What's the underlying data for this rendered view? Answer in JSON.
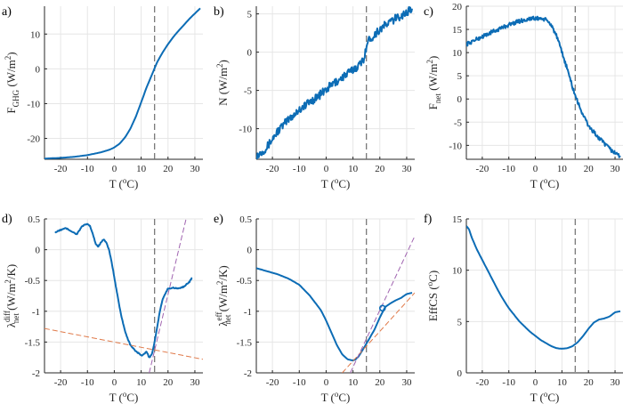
{
  "colors": {
    "line": "#0c6cb5",
    "grid": "#e6e6e6",
    "axis": "#262626",
    "vline": "#6e6e6e",
    "orange": "#e07a4a",
    "purple": "#a064b0"
  },
  "chart_data": [
    {
      "type": "line",
      "panel": "a)",
      "ylabel": {
        "main": "F",
        "sub": "GHG",
        "unit_pre": "(W/m",
        "unit_sup": "2",
        "unit_post": ")"
      },
      "xlabel": {
        "main": "T (",
        "sup": "o",
        "post": "C)"
      },
      "xlim": [
        -26,
        33
      ],
      "ylim": [
        -26,
        18
      ],
      "xticks": [
        -20,
        -10,
        0,
        10,
        20,
        30
      ],
      "yticks": [
        -20,
        -10,
        0,
        10
      ],
      "vline": 15,
      "series": [
        {
          "name": "F_GHG",
          "noise": 0,
          "x": [
            -26,
            -20,
            -15,
            -10,
            -5,
            -2,
            0,
            2,
            4,
            6,
            8,
            10,
            12,
            14,
            15,
            16,
            18,
            20,
            22,
            24,
            26,
            28,
            30,
            32
          ],
          "y": [
            -25.8,
            -25.6,
            -25.3,
            -24.8,
            -24.0,
            -23.3,
            -22.6,
            -21.5,
            -19.7,
            -17.2,
            -13.8,
            -9.6,
            -5.4,
            -1.7,
            0.2,
            2.0,
            4.7,
            7.1,
            9.2,
            11.0,
            12.7,
            14.4,
            15.9,
            17.4
          ]
        }
      ]
    },
    {
      "type": "line",
      "panel": "b)",
      "ylabel": {
        "main": "N",
        "sub": "",
        "unit_pre": "(W/m",
        "unit_sup": "2",
        "unit_post": ")"
      },
      "xlabel": {
        "main": "T (",
        "sup": "o",
        "post": "C)"
      },
      "xlim": [
        -26,
        33
      ],
      "ylim": [
        -14,
        6
      ],
      "xticks": [
        -20,
        -10,
        0,
        10,
        20,
        30
      ],
      "yticks": [
        -10,
        -5,
        0,
        5
      ],
      "vline": 15,
      "series": [
        {
          "name": "N",
          "noise": 0.55,
          "x": [
            -26,
            -22,
            -18,
            -14,
            -10,
            -6,
            -2,
            2,
            6,
            10,
            13,
            14,
            15,
            16,
            18,
            20,
            24,
            28,
            32
          ],
          "y": [
            -13.6,
            -12.4,
            -10.3,
            -8.8,
            -7.5,
            -6.5,
            -5.5,
            -4.3,
            -3.3,
            -2.3,
            -1.5,
            -0.8,
            0.8,
            1.6,
            2.3,
            3.0,
            4.0,
            4.8,
            5.6
          ]
        }
      ]
    },
    {
      "type": "line",
      "panel": "c)",
      "ylabel": {
        "main": "F",
        "sub": "net",
        "unit_pre": "(W/m",
        "unit_sup": "2",
        "unit_post": ")"
      },
      "xlabel": {
        "main": "T (",
        "sup": "o",
        "post": "C)"
      },
      "xlim": [
        -26,
        33
      ],
      "ylim": [
        -13,
        20
      ],
      "xticks": [
        -20,
        -10,
        0,
        10,
        20,
        30
      ],
      "yticks": [
        -10,
        -5,
        0,
        5,
        10,
        15,
        20
      ],
      "vline": 15,
      "series": [
        {
          "name": "F_net",
          "noise": 0.45,
          "x": [
            -26,
            -22,
            -18,
            -14,
            -10,
            -6,
            -2,
            2,
            4,
            6,
            8,
            10,
            12,
            14,
            16,
            18,
            20,
            24,
            28,
            32
          ],
          "y": [
            11.8,
            12.9,
            14.0,
            15.0,
            16.0,
            16.8,
            17.3,
            17.4,
            17.0,
            16.0,
            13.5,
            10.0,
            6.5,
            2.5,
            -0.8,
            -3.5,
            -5.8,
            -8.5,
            -10.8,
            -12.4
          ]
        }
      ]
    },
    {
      "type": "line",
      "panel": "d)",
      "ylabel": {
        "main": "λ",
        "sub": "net",
        "sup": "diff",
        "unit_pre": "(W/m",
        "unit_sup": "2",
        "unit_post": "/K)"
      },
      "xlabel": {
        "main": "T (",
        "sup": "o",
        "post": "C)"
      },
      "xlim": [
        -26,
        33
      ],
      "ylim": [
        -2,
        0.5
      ],
      "xticks": [
        -20,
        -10,
        0,
        10,
        20,
        30
      ],
      "yticks": [
        -2,
        -1.5,
        -1,
        -0.5,
        0,
        0.5
      ],
      "vline": 15,
      "series": [
        {
          "name": "lambda_diff",
          "noise": 0.008,
          "x": [
            -22,
            -20,
            -18,
            -16,
            -14,
            -12,
            -10,
            -9,
            -8,
            -7,
            -6,
            -5,
            -4,
            -3,
            -2,
            -1,
            0,
            1,
            2,
            3,
            4,
            5,
            6,
            7,
            8,
            9,
            10,
            11,
            12,
            13,
            14,
            15,
            16,
            17,
            18,
            20,
            22,
            24,
            26,
            28,
            29
          ],
          "y": [
            0.28,
            0.32,
            0.35,
            0.3,
            0.25,
            0.38,
            0.42,
            0.38,
            0.25,
            0.1,
            0.05,
            0.12,
            0.17,
            0.12,
            0.0,
            -0.2,
            -0.45,
            -0.7,
            -0.95,
            -1.15,
            -1.32,
            -1.45,
            -1.55,
            -1.6,
            -1.65,
            -1.68,
            -1.72,
            -1.7,
            -1.65,
            -1.75,
            -1.7,
            -1.5,
            -1.25,
            -1.0,
            -0.8,
            -0.63,
            -0.62,
            -0.63,
            -0.6,
            -0.52,
            -0.45
          ]
        },
        {
          "name": "fit_low",
          "style": "dashed",
          "color": "orange",
          "x": [
            -26,
            33
          ],
          "y": [
            -1.28,
            -1.78
          ]
        },
        {
          "name": "fit_high",
          "style": "dashed",
          "color": "purple",
          "x": [
            13,
            27
          ],
          "y": [
            -2.0,
            0.55
          ]
        }
      ]
    },
    {
      "type": "line",
      "panel": "e)",
      "ylabel": {
        "main": "λ",
        "sub": "net",
        "sup": "eff",
        "unit_pre": "(W/m",
        "unit_sup": "2",
        "unit_post": "/K)"
      },
      "xlabel": {
        "main": "T (",
        "sup": "o",
        "post": "C)"
      },
      "xlim": [
        -26,
        33
      ],
      "ylim": [
        -2,
        0.5
      ],
      "xticks": [
        -20,
        -10,
        0,
        10,
        20,
        30
      ],
      "yticks": [
        -2,
        -1.5,
        -1,
        -0.5,
        0,
        0.5
      ],
      "vline": 15,
      "marker": {
        "x": 21,
        "y": -0.95
      },
      "series": [
        {
          "name": "lambda_eff",
          "noise": 0,
          "x": [
            -26,
            -22,
            -18,
            -14,
            -10,
            -6,
            -2,
            0,
            2,
            4,
            6,
            8,
            10,
            11,
            12,
            14,
            16,
            18,
            20,
            22,
            24,
            26,
            28,
            30,
            32
          ],
          "y": [
            -0.3,
            -0.35,
            -0.4,
            -0.47,
            -0.57,
            -0.75,
            -0.98,
            -1.15,
            -1.35,
            -1.55,
            -1.7,
            -1.78,
            -1.8,
            -1.78,
            -1.74,
            -1.6,
            -1.45,
            -1.3,
            -1.1,
            -0.93,
            -0.87,
            -0.82,
            -0.78,
            -0.72,
            -0.7
          ]
        },
        {
          "name": "fit_low",
          "style": "dashed",
          "color": "orange",
          "x": [
            6,
            33
          ],
          "y": [
            -2.0,
            -0.7
          ]
        },
        {
          "name": "fit_high",
          "style": "dashed",
          "color": "purple",
          "x": [
            9,
            33
          ],
          "y": [
            -2.0,
            0.22
          ]
        }
      ]
    },
    {
      "type": "line",
      "panel": "f)",
      "ylabel": {
        "main": "EffCS",
        "sub": "",
        "unit_pre": "(",
        "unit_sup": "o",
        "unit_post": "C)"
      },
      "xlabel": {
        "main": "T (",
        "sup": "o",
        "post": "C)"
      },
      "xlim": [
        -26,
        33
      ],
      "ylim": [
        0,
        15
      ],
      "xticks": [
        -20,
        -10,
        0,
        10,
        20,
        30
      ],
      "yticks": [
        0,
        5,
        10,
        15
      ],
      "vline": 15,
      "series": [
        {
          "name": "EffCS",
          "noise": 0,
          "x": [
            -26,
            -25,
            -24,
            -22,
            -20,
            -18,
            -16,
            -14,
            -12,
            -10,
            -6,
            -2,
            2,
            6,
            8,
            10,
            12,
            14,
            16,
            18,
            20,
            22,
            24,
            26,
            28,
            30,
            32
          ],
          "y": [
            14.3,
            14.0,
            13.2,
            12.0,
            11.0,
            10.0,
            9.0,
            8.0,
            7.1,
            6.3,
            5.0,
            4.0,
            3.2,
            2.6,
            2.4,
            2.35,
            2.4,
            2.6,
            3.0,
            3.6,
            4.3,
            4.9,
            5.2,
            5.3,
            5.5,
            5.9,
            6.0
          ]
        }
      ]
    }
  ]
}
